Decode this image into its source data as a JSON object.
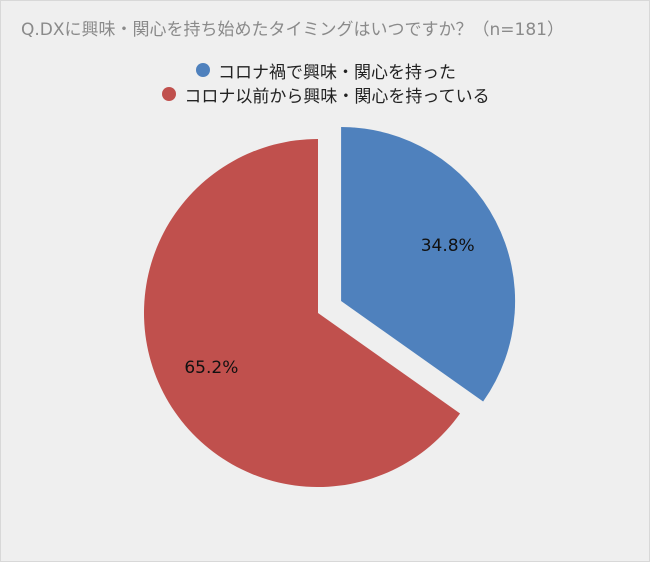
{
  "chart_data": {
    "type": "pie",
    "title": "Q.DXに興味・関心を持ち始めたタイミングはいつですか？（n=181）",
    "categories": [
      "コロナ禍で興味・関心を持った",
      "コロナ以前から興味・関心を持っている"
    ],
    "values": [
      34.8,
      65.2
    ],
    "value_labels": [
      "34.8%",
      "65.2%"
    ],
    "colors": [
      "#4f81bd",
      "#c0504d"
    ],
    "exploded": [
      true,
      false
    ]
  }
}
